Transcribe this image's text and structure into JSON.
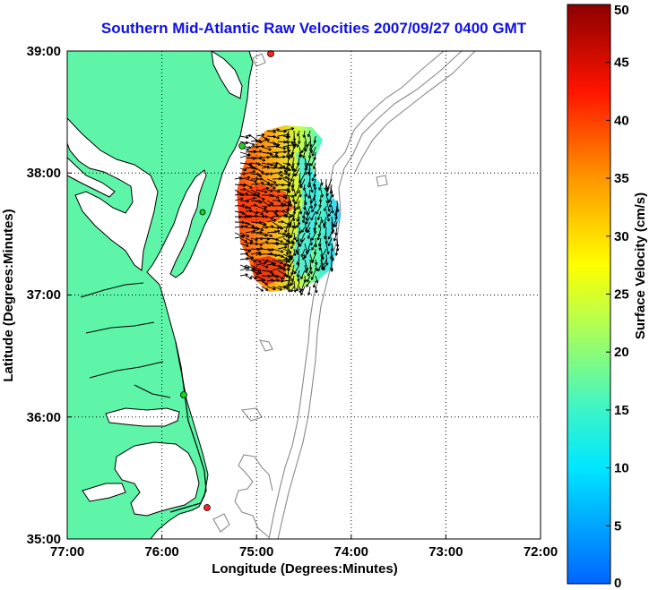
{
  "title": "Southern Mid-Atlantic Raw Velocities 2007/09/27 0400 GMT",
  "xlabel": "Longitude (Degrees:Minutes)",
  "ylabel": "Latitude (Degrees:Minutes)",
  "x_ticks": [
    "77:00",
    "76:00",
    "75:00",
    "74:00",
    "73:00",
    "72:00"
  ],
  "y_ticks": [
    "39:00",
    "38:00",
    "37:00",
    "36:00",
    "35:00"
  ],
  "colorbar": {
    "label": "Surface Velocity (cm/s)",
    "ticks": [
      "0",
      "5",
      "10",
      "15",
      "20",
      "25",
      "30",
      "35",
      "40",
      "45",
      "50"
    ],
    "range": [
      0,
      50
    ],
    "colormap": "jet"
  },
  "colors": {
    "land": "#5ff5a8",
    "coastline": "#000000",
    "bathymetry": "#8a8a8a",
    "title": "#1010e6",
    "grid": "#000000"
  },
  "markers": [
    {
      "name": "site-top",
      "color": "#ff2020",
      "lon": -74.85,
      "lat": 38.97
    },
    {
      "name": "site-delaware",
      "color": "#20d020",
      "lon": -75.1,
      "lat": 38.2
    },
    {
      "name": "site-virginia",
      "color": "#20d020",
      "lon": -75.98,
      "lat": 37.75
    },
    {
      "name": "site-outer-banks",
      "color": "#20d020",
      "lon": -75.75,
      "lat": 36.17
    },
    {
      "name": "site-hatteras",
      "color": "#ff2020",
      "lon": -75.5,
      "lat": 35.25
    }
  ]
}
